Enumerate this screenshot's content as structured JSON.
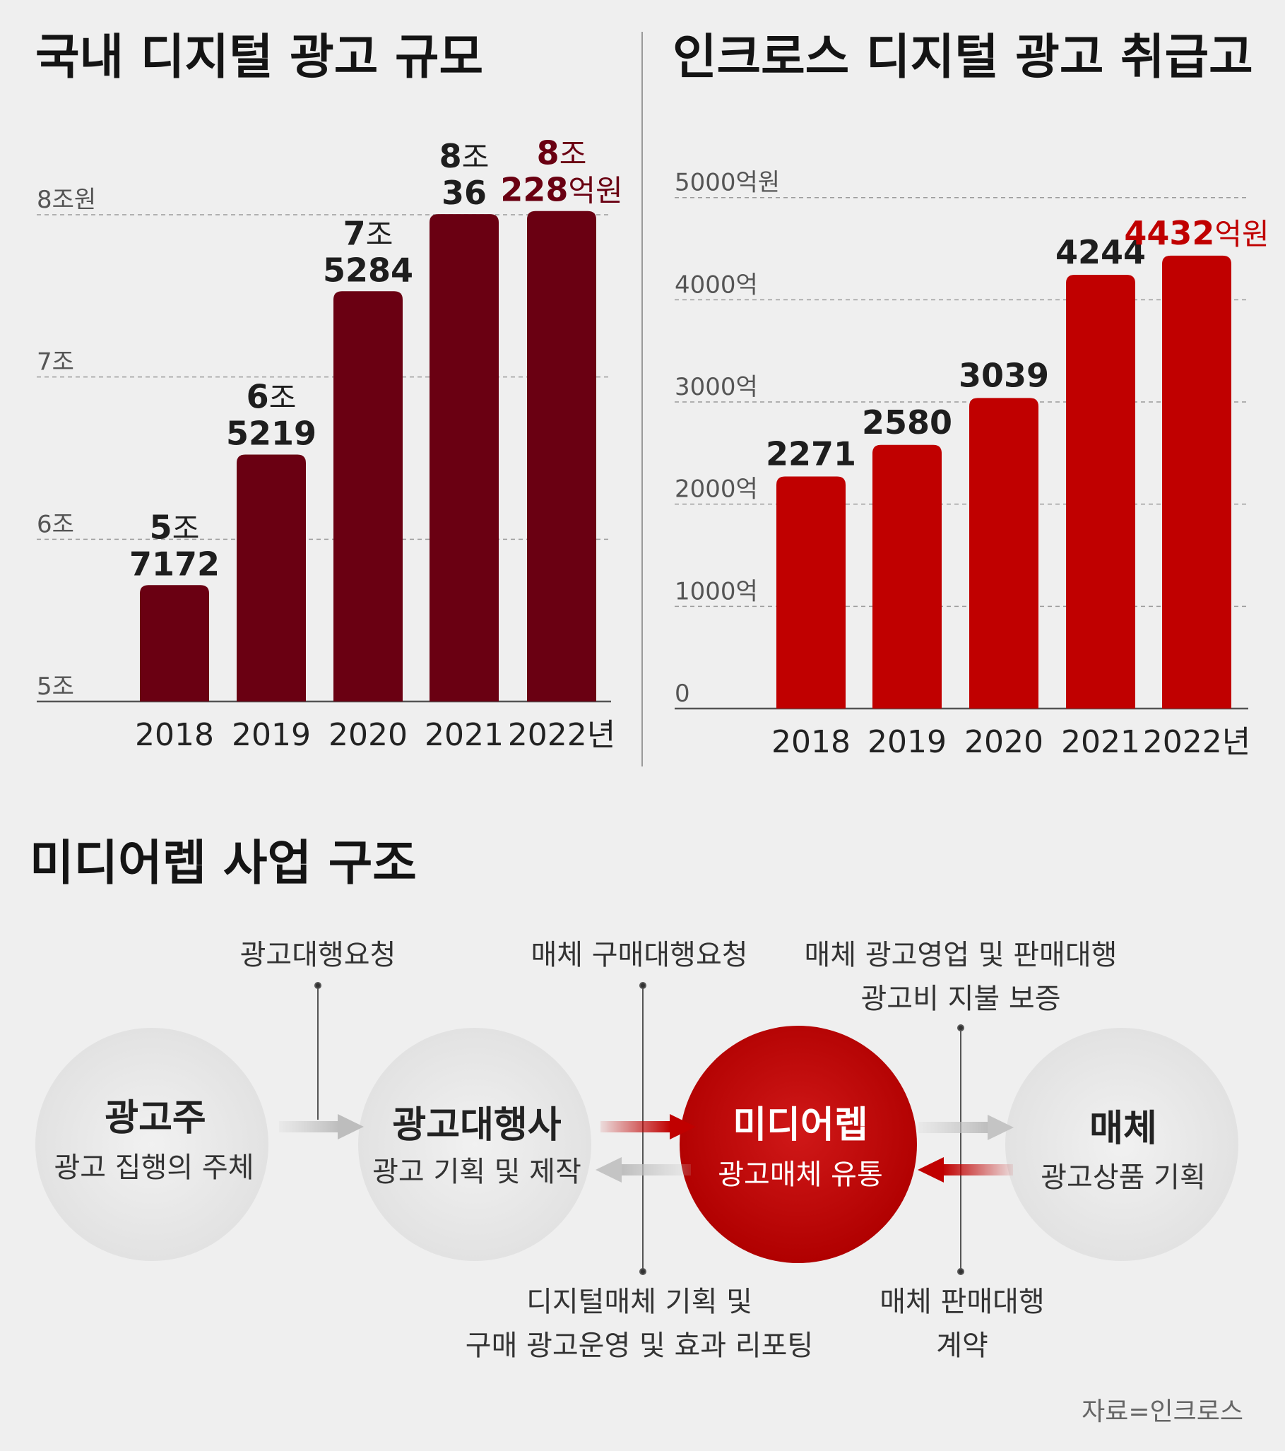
{
  "charts": [
    {
      "title": "국내 디지털 광고 규모",
      "chart_data": {
        "type": "bar",
        "title": "국내 디지털 광고 규모",
        "categories": [
          "2018",
          "2019",
          "2020",
          "2021",
          "2022년"
        ],
        "values": [
          5.7172,
          6.5219,
          7.5284,
          8.0036,
          8.0228
        ],
        "value_labels": [
          {
            "number": "5",
            "unit": "조",
            "second": "7172",
            "second_unit": ""
          },
          {
            "number": "6",
            "unit": "조",
            "second": "5219",
            "second_unit": ""
          },
          {
            "number": "7",
            "unit": "조",
            "second": "5284",
            "second_unit": ""
          },
          {
            "number": "8",
            "unit": "조",
            "second": "36",
            "second_unit": ""
          },
          {
            "number": "8",
            "unit": "조",
            "second": "228",
            "second_unit": "억원"
          }
        ],
        "y_ticks": [
          {
            "value": 5,
            "label": "5조"
          },
          {
            "value": 6,
            "label": "6조"
          },
          {
            "value": 7,
            "label": "7조"
          },
          {
            "value": 8,
            "label": "8조원"
          }
        ],
        "ylim": [
          5,
          8.2
        ],
        "grid": true,
        "bar_color": "#6a0012",
        "highlight_color": "#6a0012"
      }
    },
    {
      "title": "인크로스 디지털 광고 취급고",
      "chart_data": {
        "type": "bar",
        "title": "인크로스 디지털 광고 취급고",
        "categories": [
          "2018",
          "2019",
          "2020",
          "2021",
          "2022년"
        ],
        "values": [
          2271,
          2580,
          3039,
          4244,
          4432
        ],
        "value_labels": [
          {
            "number": "2271",
            "unit": ""
          },
          {
            "number": "2580",
            "unit": ""
          },
          {
            "number": "3039",
            "unit": ""
          },
          {
            "number": "4244",
            "unit": ""
          },
          {
            "number": "4432",
            "unit": "억원"
          }
        ],
        "y_ticks": [
          {
            "value": 0,
            "label": "0"
          },
          {
            "value": 1000,
            "label": "1000억"
          },
          {
            "value": 2000,
            "label": "2000억"
          },
          {
            "value": 3000,
            "label": "3000억"
          },
          {
            "value": 4000,
            "label": "4000억"
          },
          {
            "value": 5000,
            "label": "5000억원"
          }
        ],
        "ylim": [
          0,
          5150
        ],
        "grid": true,
        "bar_color": "#c00000",
        "highlight_color": "#c00000"
      }
    }
  ],
  "structure": {
    "title": "미디어렙 사업 구조",
    "nodes": [
      {
        "title": "광고주",
        "subtitle": "광고 집행의 주체"
      },
      {
        "title": "광고대행사",
        "subtitle": "광고 기획 및 제작"
      },
      {
        "title": "미디어렙",
        "subtitle": "광고매체 유통"
      },
      {
        "title": "매체",
        "subtitle": "광고상품 기획"
      }
    ],
    "notes": {
      "agency_request": "광고대행요청",
      "media_buy_request": "매체 구매대행요청",
      "media_sales_line1": "매체 광고영업 및 판매대행",
      "media_sales_line2": "광고비 지불 보증",
      "digital_plan_line1": "디지털매체 기획 및",
      "digital_plan_line2": "구매 광고운영 및 효과 리포팅",
      "media_contract_line1": "매체 판매대행",
      "media_contract_line2": "계약"
    },
    "accent_color": "#c00000",
    "node_color": "#e8e8e8"
  },
  "source": "자료=인크로스",
  "colors": {
    "panel_bg": "#efefef",
    "dark_red": "#6a0012",
    "red": "#c00000"
  }
}
